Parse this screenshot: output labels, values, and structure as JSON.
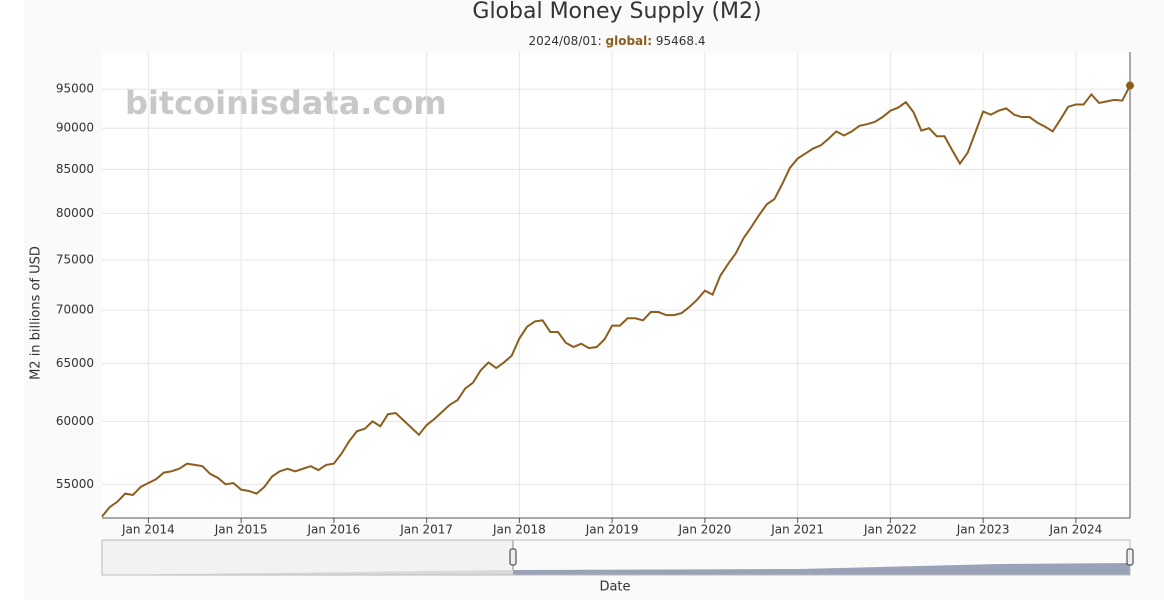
{
  "chart_data": {
    "type": "line",
    "title": "Global Money Supply (M2)",
    "subtitle": [
      "2024/08/01:",
      "global:",
      "95468.4"
    ],
    "watermark": "bitcoinisdata.com",
    "x_label": "Date",
    "y_label": "M2 in billions of USD",
    "log_y": true,
    "grid": true,
    "x": [
      "2013/07/01",
      "2013/08/01",
      "2013/09/01",
      "2013/10/01",
      "2013/11/01",
      "2013/12/01",
      "2014/01/01",
      "2014/02/01",
      "2014/03/01",
      "2014/04/01",
      "2014/05/01",
      "2014/06/01",
      "2014/07/01",
      "2014/08/01",
      "2014/09/01",
      "2014/10/01",
      "2014/11/01",
      "2014/12/01",
      "2015/01/01",
      "2015/02/01",
      "2015/03/01",
      "2015/04/01",
      "2015/05/01",
      "2015/06/01",
      "2015/07/01",
      "2015/08/01",
      "2015/09/01",
      "2015/10/01",
      "2015/11/01",
      "2015/12/01",
      "2016/01/01",
      "2016/02/01",
      "2016/03/01",
      "2016/04/01",
      "2016/05/01",
      "2016/06/01",
      "2016/07/01",
      "2016/08/01",
      "2016/09/01",
      "2016/10/01",
      "2016/11/01",
      "2016/12/01",
      "2017/01/01",
      "2017/02/01",
      "2017/03/01",
      "2017/04/01",
      "2017/05/01",
      "2017/06/01",
      "2017/07/01",
      "2017/08/01",
      "2017/09/01",
      "2017/10/01",
      "2017/11/01",
      "2017/12/01",
      "2018/01/01",
      "2018/02/01",
      "2018/03/01",
      "2018/04/01",
      "2018/05/01",
      "2018/06/01",
      "2018/07/01",
      "2018/08/01",
      "2018/09/01",
      "2018/10/01",
      "2018/11/01",
      "2018/12/01",
      "2019/01/01",
      "2019/02/01",
      "2019/03/01",
      "2019/04/01",
      "2019/05/01",
      "2019/06/01",
      "2019/07/01",
      "2019/08/01",
      "2019/09/01",
      "2019/10/01",
      "2019/11/01",
      "2019/12/01",
      "2020/01/01",
      "2020/02/01",
      "2020/03/01",
      "2020/04/01",
      "2020/05/01",
      "2020/06/01",
      "2020/07/01",
      "2020/08/01",
      "2020/09/01",
      "2020/10/01",
      "2020/11/01",
      "2020/12/01",
      "2021/01/01",
      "2021/02/01",
      "2021/03/01",
      "2021/04/01",
      "2021/05/01",
      "2021/06/01",
      "2021/07/01",
      "2021/08/01",
      "2021/09/01",
      "2021/10/01",
      "2021/11/01",
      "2021/12/01",
      "2022/01/01",
      "2022/02/01",
      "2022/03/01",
      "2022/04/01",
      "2022/05/01",
      "2022/06/01",
      "2022/07/01",
      "2022/08/01",
      "2022/09/01",
      "2022/10/01",
      "2022/11/01",
      "2022/12/01",
      "2023/01/01",
      "2023/02/01",
      "2023/03/01",
      "2023/04/01",
      "2023/05/01",
      "2023/06/01",
      "2023/07/01",
      "2023/08/01",
      "2023/09/01",
      "2023/10/01",
      "2023/11/01",
      "2023/12/01",
      "2024/01/01",
      "2024/02/01",
      "2024/03/01",
      "2024/04/01",
      "2024/05/01",
      "2024/06/01",
      "2024/07/01",
      "2024/08/01"
    ],
    "series": [
      {
        "name": "global",
        "color": "#8b5e1e",
        "values": [
          52600,
          53300,
          53700,
          54300,
          54200,
          54800,
          55100,
          55400,
          55900,
          56000,
          56200,
          56600,
          56500,
          56400,
          55800,
          55500,
          55000,
          55100,
          54600,
          54500,
          54300,
          54800,
          55600,
          56000,
          56200,
          56000,
          56200,
          56400,
          56100,
          56500,
          56600,
          57400,
          58400,
          59200,
          59400,
          60000,
          59600,
          60600,
          60700,
          60100,
          59500,
          58900,
          59700,
          60200,
          60800,
          61400,
          61800,
          62800,
          63300,
          64400,
          65100,
          64600,
          65100,
          65700,
          67300,
          68400,
          68900,
          69000,
          67900,
          67900,
          66900,
          66500,
          66800,
          66400,
          66500,
          67200,
          68500,
          68500,
          69200,
          69200,
          69000,
          69800,
          69800,
          69500,
          69500,
          69700,
          70300,
          71000,
          71900,
          71500,
          73400,
          74600,
          75700,
          77300,
          78500,
          79800,
          81000,
          81600,
          83300,
          85200,
          86300,
          86900,
          87500,
          87900,
          88700,
          89600,
          89100,
          89600,
          90300,
          90500,
          90800,
          91400,
          92200,
          92600,
          93300,
          92000,
          89700,
          90000,
          89000,
          89000,
          87300,
          85700,
          87000,
          89500,
          92100,
          91700,
          92200,
          92500,
          91700,
          91400,
          91400,
          90700,
          90200,
          89600,
          91100,
          92700,
          93000,
          93000,
          94300,
          93200,
          93400,
          93600,
          93500,
          95468.4
        ]
      }
    ],
    "xlim": [
      "2013/07/01",
      "2024/08/01"
    ],
    "xticks": [
      {
        "value": "2014/01/01",
        "label": "Jan 2014"
      },
      {
        "value": "2015/01/01",
        "label": "Jan 2015"
      },
      {
        "value": "2016/01/01",
        "label": "Jan 2016"
      },
      {
        "value": "2017/01/01",
        "label": "Jan 2017"
      },
      {
        "value": "2018/01/01",
        "label": "Jan 2018"
      },
      {
        "value": "2019/01/01",
        "label": "Jan 2019"
      },
      {
        "value": "2020/01/01",
        "label": "Jan 2020"
      },
      {
        "value": "2021/01/01",
        "label": "Jan 2021"
      },
      {
        "value": "2022/01/01",
        "label": "Jan 2022"
      },
      {
        "value": "2023/01/01",
        "label": "Jan 2023"
      },
      {
        "value": "2024/01/01",
        "label": "Jan 2024"
      }
    ],
    "ylim": [
      52500,
      100000
    ],
    "yticks": [
      55000,
      60000,
      65000,
      70000,
      75000,
      80000,
      85000,
      90000,
      95000
    ]
  }
}
